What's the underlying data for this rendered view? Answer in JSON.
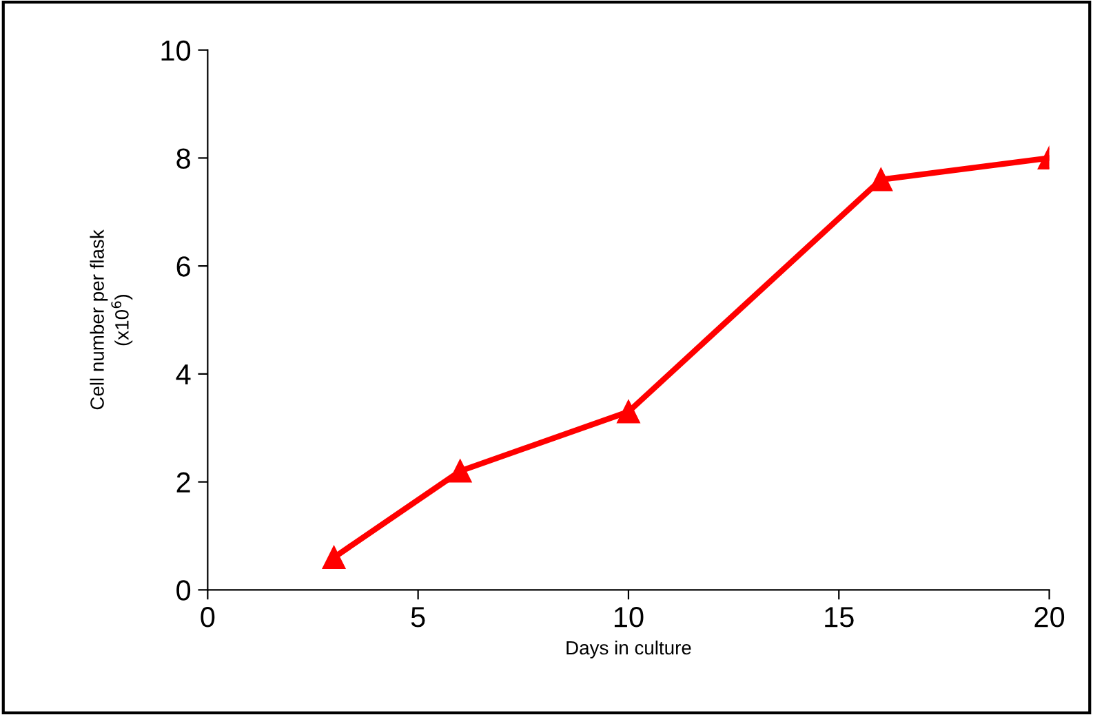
{
  "chart_data": {
    "type": "line",
    "xlabel": "Days in culture",
    "ylabel": "Cell number per flask\n(x10$^{6}$)",
    "x": [
      3,
      6,
      10,
      16,
      20
    ],
    "series": [
      {
        "color": "#ff0000",
        "values": [
          0.6,
          2.2,
          3.3,
          7.6,
          8.0
        ]
      }
    ],
    "xlim": [
      0,
      20
    ],
    "xticks": [
      0,
      5,
      10,
      15,
      20
    ],
    "ylim": [
      0,
      10
    ],
    "yticks": [
      0,
      2,
      4,
      6,
      8,
      10
    ],
    "marker": "triangle",
    "line_style": "solid",
    "grid": false,
    "legend": false
  }
}
